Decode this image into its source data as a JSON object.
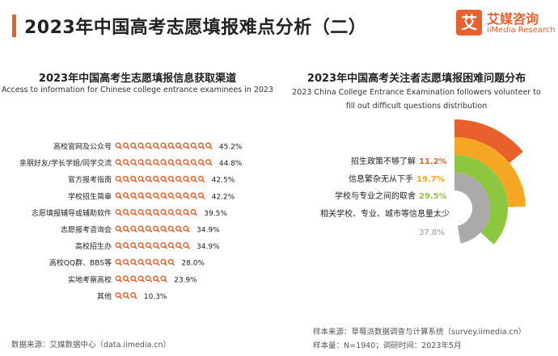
{
  "header": {
    "title": "2023年中国高考志愿填报难点分析（二）",
    "logo_mark": "艾",
    "logo_cn": "艾媒咨询",
    "logo_en": "iiMedia Research"
  },
  "colors": {
    "accent": "#e8612c",
    "icon": "#e8612c",
    "ring1": "#e8612c",
    "ring2": "#f5a623",
    "ring3": "#8dc63f",
    "ring4": "#aaaaaa",
    "ring4_label": "#999999"
  },
  "chart_data": [
    {
      "type": "bar",
      "title": "2023年中国高考生志愿填报信息获取渠道",
      "subtitle": "Access to information for Chinese college entrance examinees in 2023",
      "icon": "magnifier-icon",
      "categories": [
        "高校官网及公众号",
        "亲朋好友/学长学姐/同学交流",
        "官方报考指南",
        "学校招生简章",
        "志愿填报辅导或辅助软件",
        "志愿报考咨询会",
        "高校招生办",
        "高校QQ群、BBS等",
        "实地考察高校",
        "其他"
      ],
      "values": [
        45.2,
        44.8,
        42.5,
        42.2,
        39.5,
        34.9,
        34.9,
        28.0,
        23.9,
        10.3
      ],
      "value_labels": [
        "45.2%",
        "44.8%",
        "42.5%",
        "42.2%",
        "39.5%",
        "34.9%",
        "34.9%",
        "28.0%",
        "23.9%",
        "10.3%"
      ]
    },
    {
      "type": "radial-bar",
      "title": "2023年中国高考关注者志愿填报困难问题分布",
      "subtitle_line1": "2023 China College Entrance Examination followers volunteer to",
      "subtitle_line2": "fill out difficult questions distribution",
      "categories": [
        "招生政策不够了解",
        "信息繁杂无从下手",
        "学校与专业之间的取舍",
        "相关学校、专业、城市等信息量太少"
      ],
      "values": [
        11.2,
        19.7,
        29.5,
        37.8
      ],
      "value_labels": [
        "11.2%",
        "19.7%",
        "29.5%",
        "37.8%"
      ]
    }
  ],
  "footer": {
    "source_left": "数据来源：艾媒数据中心（data.iimedia.cn）",
    "sample_source": "样本来源：草莓派数据调查与计算系统（survey.iimedia.cn）",
    "sample_size": "样本量：N=1940；调研时间：2023年5月"
  }
}
